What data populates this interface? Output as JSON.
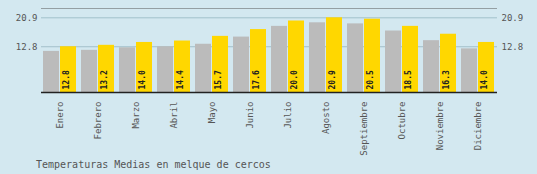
{
  "chart_data": {
    "type": "bar",
    "title": "Temperaturas Medias en melque de cercos",
    "categories": [
      "Enero",
      "Febrero",
      "Marzo",
      "Abril",
      "Mayo",
      "Junio",
      "Julio",
      "Agosto",
      "Septiembre",
      "Octubre",
      "Noviembre",
      "Diciembre"
    ],
    "series": [
      {
        "color": "#BBBBBB",
        "values": [
          11.5,
          11.8,
          12.5,
          12.8,
          13.5,
          15.5,
          18.5,
          19.5,
          19.2,
          17.2,
          14.5,
          12.2
        ]
      },
      {
        "color": "#FFD700",
        "values": [
          12.8,
          13.2,
          14.0,
          14.4,
          15.7,
          17.6,
          20.0,
          20.9,
          20.5,
          18.5,
          16.3,
          14.0
        ],
        "data_labels": true,
        "value_labels": [
          "12.8",
          "13.2",
          "14.0",
          "14.4",
          "15.7",
          "17.6",
          "20.0",
          "20.9",
          "20.5",
          "18.5",
          "16.3",
          "14.0"
        ]
      }
    ],
    "ylim": [
      0,
      23.5
    ],
    "yticks": [
      12.8,
      20.9
    ],
    "y2lim": [
      0,
      23.5
    ],
    "y2ticks": [
      12.8,
      20.9
    ],
    "grid": true
  }
}
